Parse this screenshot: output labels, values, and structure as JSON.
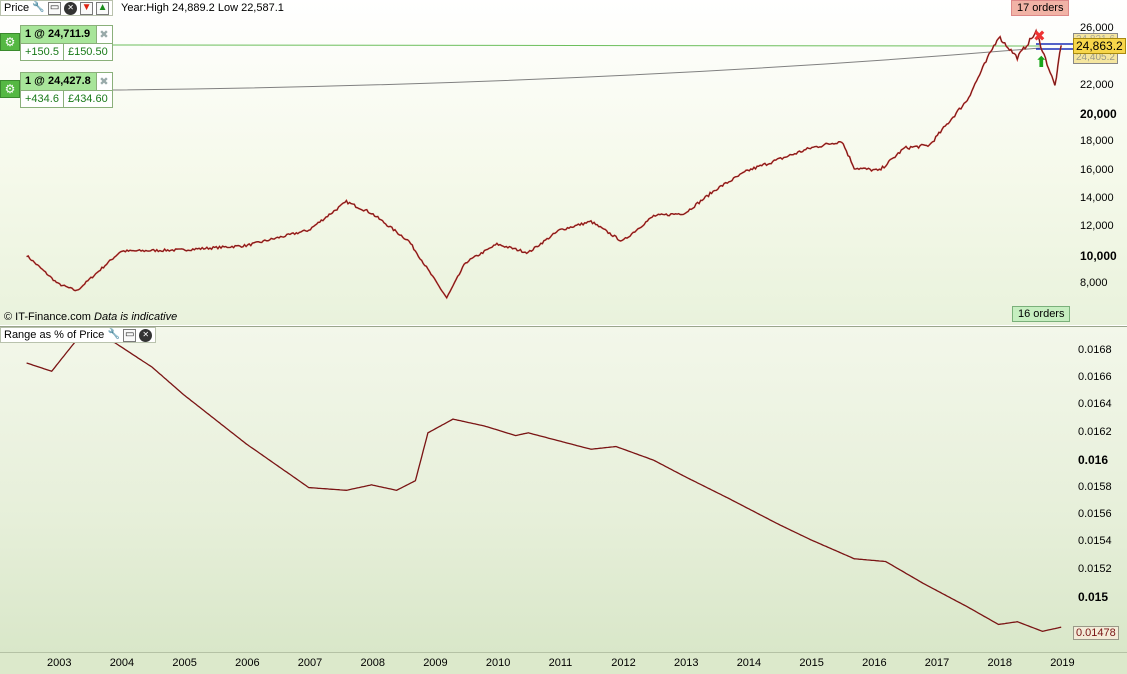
{
  "price_panel": {
    "title": "Price",
    "icons": [
      "wrench-icon",
      "window-icon",
      "close-icon",
      "remove-icon",
      "add-icon"
    ],
    "info_text": "Year:High 24,889.2 Low 22,587.1",
    "credit_source": "© IT-Finance.com",
    "credit_note": "Data is indicative",
    "orders_top": "17 orders",
    "orders_bottom": "16 orders",
    "y_ticks": [
      "26,000",
      "24,000",
      "22,000",
      "20,000",
      "18,000",
      "16,000",
      "14,000",
      "12,000",
      "10,000",
      "8,000"
    ],
    "current_price": "24,863.2",
    "price_tag_a": "24,821.6",
    "price_tag_b": "24,405.2"
  },
  "orders": [
    {
      "label": "1 @ 24,711.9",
      "points": "+150.5",
      "pnl": "£150.50"
    },
    {
      "label": "1 @ 24,427.8",
      "points": "+434.6",
      "pnl": "£434.60"
    }
  ],
  "indicator_panel": {
    "title": "Range as % of Price",
    "y_ticks": [
      "0.0168",
      "0.0166",
      "0.0164",
      "0.0162",
      "0.016",
      "0.0158",
      "0.0156",
      "0.0154",
      "0.0152",
      "0.015"
    ],
    "current_value": "0.01478"
  },
  "x_axis": {
    "labels": [
      "2003",
      "2004",
      "2005",
      "2006",
      "2007",
      "2008",
      "2009",
      "2010",
      "2011",
      "2012",
      "2013",
      "2014",
      "2015",
      "2016",
      "2017",
      "2018",
      "2019"
    ]
  },
  "chart_data": [
    {
      "type": "line",
      "title": "Price",
      "x": [
        "2002.5",
        "2003.0",
        "2003.3",
        "2004.0",
        "2005.0",
        "2006.0",
        "2007.0",
        "2007.6",
        "2008.0",
        "2008.6",
        "2009.2",
        "2009.5",
        "2010.0",
        "2010.5",
        "2011.0",
        "2011.5",
        "2012.0",
        "2012.5",
        "2013.0",
        "2013.5",
        "2014.0",
        "2014.5",
        "2015.0",
        "2015.5",
        "2015.7",
        "2016.1",
        "2016.5",
        "2016.9",
        "2017.5",
        "2018.0",
        "2018.3",
        "2018.6",
        "2018.9",
        "2019.0"
      ],
      "values": [
        10000,
        8000,
        7500,
        10300,
        10400,
        10700,
        11800,
        13800,
        13000,
        11000,
        7000,
        9500,
        10800,
        10200,
        11800,
        12400,
        11000,
        12800,
        13000,
        14700,
        16000,
        16800,
        17600,
        18100,
        16200,
        16000,
        17600,
        17800,
        21000,
        25500,
        24000,
        25800,
        22000,
        24863
      ],
      "ylim": [
        6500,
        26800
      ],
      "color": "#c0302c"
    },
    {
      "type": "line",
      "title": "Range as % of Price",
      "x": [
        "2002.5",
        "2002.9",
        "2003.3",
        "2003.9",
        "2004.5",
        "2005.0",
        "2006.0",
        "2007.0",
        "2007.6",
        "2008.0",
        "2008.4",
        "2008.7",
        "2008.9",
        "2009.3",
        "2009.8",
        "2010.3",
        "2010.5",
        "2011.0",
        "2011.5",
        "2011.9",
        "2012.5",
        "2013.0",
        "2013.7",
        "2014.5",
        "2015.0",
        "2015.7",
        "2016.2",
        "2016.8",
        "2017.5",
        "2018.0",
        "2018.3",
        "2018.7",
        "2019.0"
      ],
      "values": [
        0.01671,
        0.01665,
        0.01688,
        0.01686,
        0.01668,
        0.01648,
        0.01612,
        0.0158,
        0.01578,
        0.01582,
        0.01578,
        0.01585,
        0.0162,
        0.0163,
        0.01625,
        0.01618,
        0.0162,
        0.01614,
        0.01608,
        0.0161,
        0.016,
        0.01588,
        0.01572,
        0.01553,
        0.01542,
        0.01528,
        0.01526,
        0.0151,
        0.01493,
        0.0148,
        0.01482,
        0.01475,
        0.01478
      ],
      "ylim": [
        0.01465,
        0.0169
      ],
      "color": "#7a1414"
    }
  ]
}
